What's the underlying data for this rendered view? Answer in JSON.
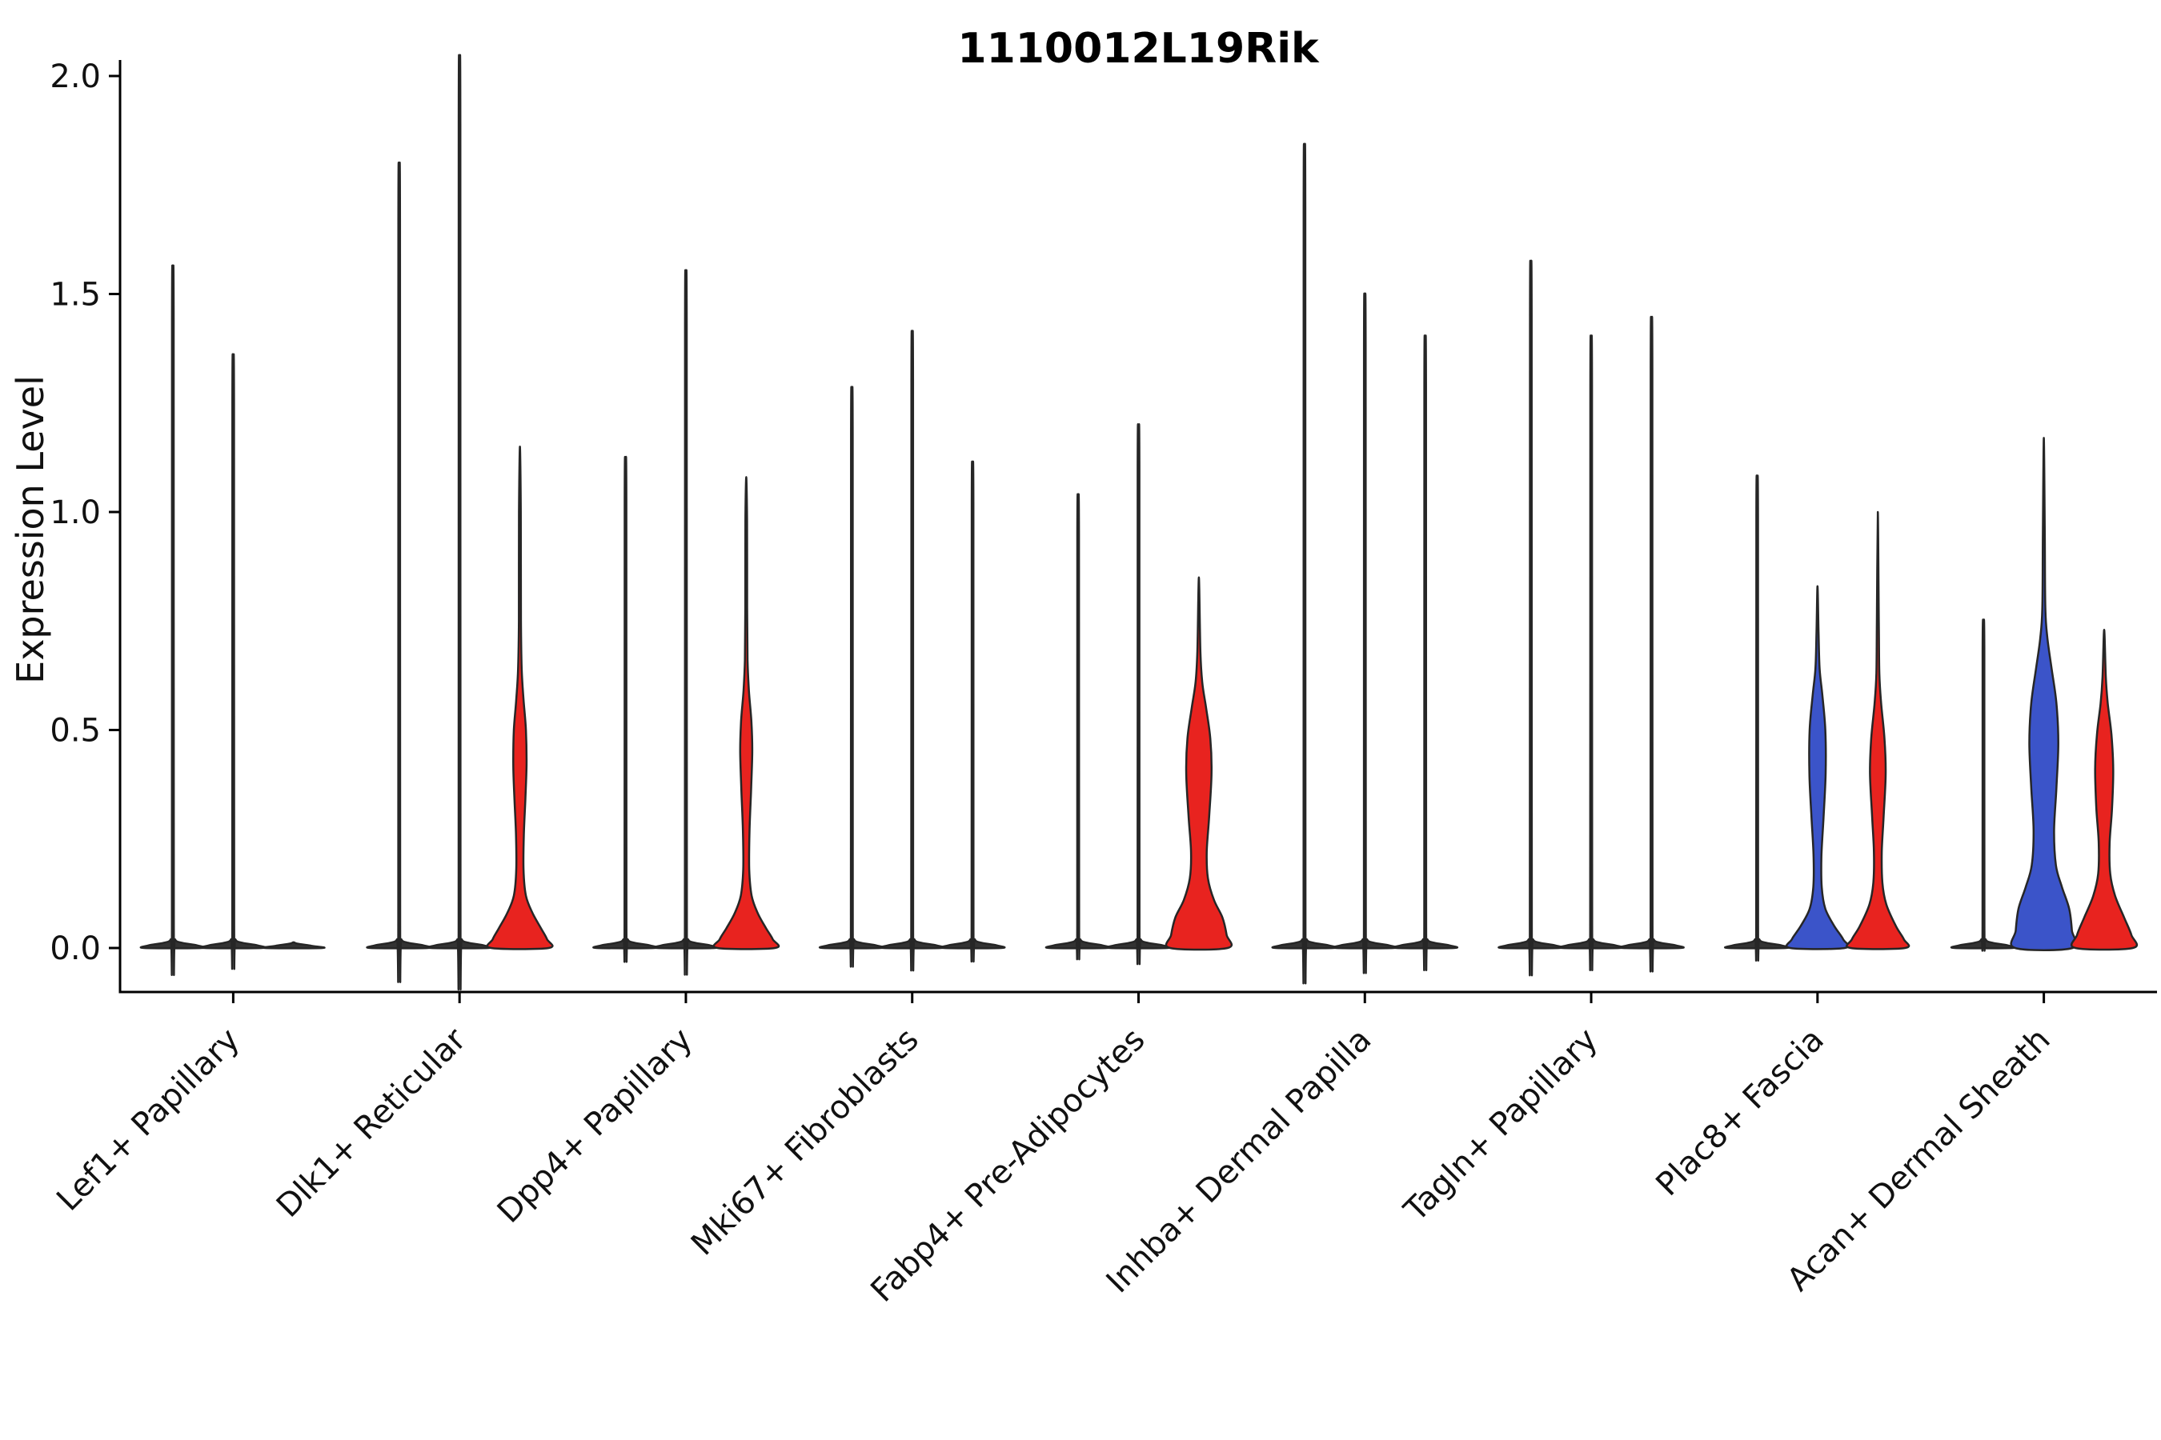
{
  "chart_data": {
    "type": "violin",
    "title": "1110012L19Rik",
    "ylabel": "Expression Level",
    "xlabel": "",
    "grid": false,
    "legend": null,
    "x_tick_rotation_deg": 45,
    "ylim": [
      -0.08,
      2.08
    ],
    "y_tick_values": [
      0.0,
      0.5,
      1.0,
      1.5,
      2.0
    ],
    "y_tick_labels": [
      "0.0",
      "0.5",
      "1.0",
      "1.5",
      "2.0"
    ],
    "categories": [
      "Lef1+ Papillary",
      "Dlk1+ Reticular",
      "Dpp4+ Papillary",
      "Mki67+ Fibroblasts",
      "Fabp4+ Pre-Adipocytes",
      "Inhba+ Dermal Papilla",
      "Tagln+ Papillary",
      "Plac8+ Fascia",
      "Acan+ Dermal Sheath"
    ],
    "palette": {
      "red": "#e8231f",
      "blue": "#3b54c9",
      "thin": "#333333"
    },
    "edge_color": "#262626",
    "groups": [
      {
        "category": "Lef1+ Papillary",
        "violins": [
          {
            "color": "thin",
            "max": 1.5
          },
          {
            "color": "thin",
            "max": 1.31
          },
          {
            "color": "thin",
            "max": 0.01
          }
        ]
      },
      {
        "category": "Dlk1+ Reticular",
        "violins": [
          {
            "color": "thin",
            "max": 1.72
          },
          {
            "color": "thin",
            "max": 1.95
          },
          {
            "color": "red",
            "max": 1.15,
            "profile": [
              [
                0,
                0.95
              ],
              [
                0.02,
                0.9
              ],
              [
                0.045,
                0.7
              ],
              [
                0.08,
                0.42
              ],
              [
                0.12,
                0.2
              ],
              [
                0.18,
                0.12
              ],
              [
                0.26,
                0.13
              ],
              [
                0.34,
                0.18
              ],
              [
                0.42,
                0.22
              ],
              [
                0.5,
                0.2
              ],
              [
                0.57,
                0.12
              ],
              [
                0.64,
                0.06
              ],
              [
                0.75,
                0.035
              ],
              [
                1.0,
                0.03
              ],
              [
                1.15,
                0
              ]
            ]
          }
        ]
      },
      {
        "category": "Dpp4+ Papillary",
        "violins": [
          {
            "color": "thin",
            "max": 1.09
          },
          {
            "color": "thin",
            "max": 1.49
          },
          {
            "color": "red",
            "max": 1.08,
            "profile": [
              [
                0,
                0.95
              ],
              [
                0.02,
                0.88
              ],
              [
                0.045,
                0.66
              ],
              [
                0.08,
                0.38
              ],
              [
                0.12,
                0.18
              ],
              [
                0.18,
                0.1
              ],
              [
                0.27,
                0.11
              ],
              [
                0.36,
                0.16
              ],
              [
                0.45,
                0.2
              ],
              [
                0.52,
                0.17
              ],
              [
                0.59,
                0.09
              ],
              [
                0.66,
                0.045
              ],
              [
                0.78,
                0.03
              ],
              [
                0.98,
                0.028
              ],
              [
                1.08,
                0
              ]
            ]
          }
        ]
      },
      {
        "category": "Mki67+ Fibroblasts",
        "violins": [
          {
            "color": "thin",
            "max": 1.24
          },
          {
            "color": "thin",
            "max": 1.36
          },
          {
            "color": "thin",
            "max": 1.08
          }
        ]
      },
      {
        "category": "Fabp4+ Pre-Adipocytes",
        "violins": [
          {
            "color": "thin",
            "max": 1.01
          },
          {
            "color": "thin",
            "max": 1.16
          },
          {
            "color": "red",
            "max": 0.85,
            "profile": [
              [
                0,
                0.95
              ],
              [
                0.03,
                0.92
              ],
              [
                0.07,
                0.78
              ],
              [
                0.11,
                0.5
              ],
              [
                0.16,
                0.3
              ],
              [
                0.22,
                0.26
              ],
              [
                0.3,
                0.34
              ],
              [
                0.4,
                0.42
              ],
              [
                0.48,
                0.38
              ],
              [
                0.55,
                0.24
              ],
              [
                0.61,
                0.11
              ],
              [
                0.68,
                0.05
              ],
              [
                0.85,
                0
              ]
            ]
          }
        ]
      },
      {
        "category": "Inhba+ Dermal Papilla",
        "violins": [
          {
            "color": "thin",
            "max": 1.76
          },
          {
            "color": "thin",
            "max": 1.44
          },
          {
            "color": "thin",
            "max": 1.35
          }
        ]
      },
      {
        "category": "Tagln+ Papillary",
        "violins": [
          {
            "color": "thin",
            "max": 1.51
          },
          {
            "color": "thin",
            "max": 1.35
          },
          {
            "color": "thin",
            "max": 1.39
          }
        ]
      },
      {
        "category": "Plac8+ Fascia",
        "violins": [
          {
            "color": "thin",
            "max": 1.05
          },
          {
            "color": "blue",
            "max": 0.83,
            "profile": [
              [
                0,
                0.9
              ],
              [
                0.02,
                0.85
              ],
              [
                0.05,
                0.56
              ],
              [
                0.09,
                0.26
              ],
              [
                0.14,
                0.14
              ],
              [
                0.21,
                0.13
              ],
              [
                0.3,
                0.2
              ],
              [
                0.4,
                0.27
              ],
              [
                0.5,
                0.26
              ],
              [
                0.58,
                0.16
              ],
              [
                0.64,
                0.07
              ],
              [
                0.72,
                0.035
              ],
              [
                0.83,
                0
              ]
            ]
          },
          {
            "color": "red",
            "max": 1.0,
            "profile": [
              [
                0,
                0.9
              ],
              [
                0.02,
                0.86
              ],
              [
                0.05,
                0.6
              ],
              [
                0.1,
                0.28
              ],
              [
                0.15,
                0.15
              ],
              [
                0.22,
                0.13
              ],
              [
                0.3,
                0.19
              ],
              [
                0.4,
                0.26
              ],
              [
                0.48,
                0.22
              ],
              [
                0.56,
                0.11
              ],
              [
                0.63,
                0.05
              ],
              [
                0.75,
                0.032
              ],
              [
                1.0,
                0
              ]
            ]
          }
        ]
      },
      {
        "category": "Acan+ Dermal Sheath",
        "violins": [
          {
            "color": "thin",
            "max": 0.74
          },
          {
            "color": "blue",
            "max": 1.17,
            "profile": [
              [
                0,
                0.95
              ],
              [
                0.04,
                0.93
              ],
              [
                0.09,
                0.84
              ],
              [
                0.14,
                0.6
              ],
              [
                0.19,
                0.4
              ],
              [
                0.27,
                0.34
              ],
              [
                0.37,
                0.42
              ],
              [
                0.47,
                0.48
              ],
              [
                0.56,
                0.42
              ],
              [
                0.64,
                0.26
              ],
              [
                0.71,
                0.12
              ],
              [
                0.78,
                0.05
              ],
              [
                0.95,
                0.032
              ],
              [
                1.17,
                0
              ]
            ]
          },
          {
            "color": "red",
            "max": 0.73,
            "profile": [
              [
                0,
                0.95
              ],
              [
                0.03,
                0.9
              ],
              [
                0.07,
                0.66
              ],
              [
                0.12,
                0.36
              ],
              [
                0.17,
                0.2
              ],
              [
                0.24,
                0.18
              ],
              [
                0.32,
                0.26
              ],
              [
                0.41,
                0.3
              ],
              [
                0.49,
                0.24
              ],
              [
                0.56,
                0.12
              ],
              [
                0.62,
                0.055
              ],
              [
                0.73,
                0
              ]
            ]
          }
        ]
      }
    ]
  }
}
